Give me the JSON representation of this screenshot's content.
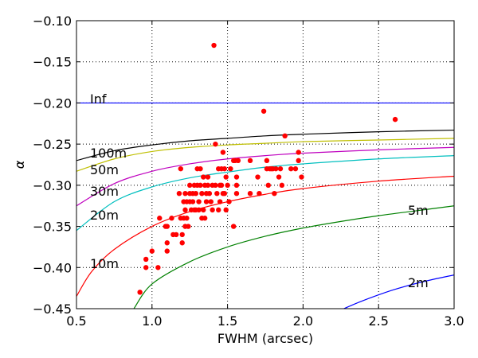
{
  "chart_data": {
    "type": "scatter",
    "title": "",
    "xlabel": "FWHM (arcsec)",
    "ylabel": "α",
    "xlim": [
      0.5,
      3.0
    ],
    "ylim": [
      -0.45,
      -0.1
    ],
    "xticks": [
      "0.5",
      "1.0",
      "1.5",
      "2.0",
      "2.5",
      "3.0"
    ],
    "yticks": [
      "−0.10",
      "−0.15",
      "−0.20",
      "−0.25",
      "−0.30",
      "−0.35",
      "−0.40",
      "−0.45"
    ],
    "grid": true,
    "scatter_color": "#ff0000",
    "points": [
      [
        0.92,
        -0.43
      ],
      [
        0.96,
        -0.39
      ],
      [
        0.96,
        -0.4
      ],
      [
        1.0,
        -0.38
      ],
      [
        1.04,
        -0.4
      ],
      [
        1.05,
        -0.34
      ],
      [
        1.09,
        -0.35
      ],
      [
        1.1,
        -0.35
      ],
      [
        1.1,
        -0.37
      ],
      [
        1.1,
        -0.38
      ],
      [
        1.13,
        -0.34
      ],
      [
        1.14,
        -0.36
      ],
      [
        1.16,
        -0.36
      ],
      [
        1.18,
        -0.31
      ],
      [
        1.19,
        -0.28
      ],
      [
        1.19,
        -0.34
      ],
      [
        1.2,
        -0.36
      ],
      [
        1.2,
        -0.37
      ],
      [
        1.21,
        -0.32
      ],
      [
        1.21,
        -0.34
      ],
      [
        1.22,
        -0.31
      ],
      [
        1.22,
        -0.33
      ],
      [
        1.22,
        -0.35
      ],
      [
        1.23,
        -0.32
      ],
      [
        1.23,
        -0.34
      ],
      [
        1.24,
        -0.35
      ],
      [
        1.25,
        -0.3
      ],
      [
        1.25,
        -0.31
      ],
      [
        1.25,
        -0.32
      ],
      [
        1.26,
        -0.33
      ],
      [
        1.27,
        -0.31
      ],
      [
        1.27,
        -0.32
      ],
      [
        1.28,
        -0.3
      ],
      [
        1.28,
        -0.33
      ],
      [
        1.29,
        -0.31
      ],
      [
        1.29,
        -0.33
      ],
      [
        1.3,
        -0.28
      ],
      [
        1.3,
        -0.3
      ],
      [
        1.31,
        -0.32
      ],
      [
        1.31,
        -0.33
      ],
      [
        1.32,
        -0.28
      ],
      [
        1.32,
        -0.3
      ],
      [
        1.33,
        -0.31
      ],
      [
        1.33,
        -0.34
      ],
      [
        1.34,
        -0.29
      ],
      [
        1.34,
        -0.33
      ],
      [
        1.35,
        -0.3
      ],
      [
        1.35,
        -0.34
      ],
      [
        1.36,
        -0.31
      ],
      [
        1.36,
        -0.32
      ],
      [
        1.37,
        -0.29
      ],
      [
        1.37,
        -0.3
      ],
      [
        1.38,
        -0.31
      ],
      [
        1.39,
        -0.32
      ],
      [
        1.4,
        -0.3
      ],
      [
        1.4,
        -0.33
      ],
      [
        1.41,
        -0.13
      ],
      [
        1.42,
        -0.25
      ],
      [
        1.42,
        -0.3
      ],
      [
        1.43,
        -0.31
      ],
      [
        1.44,
        -0.28
      ],
      [
        1.44,
        -0.33
      ],
      [
        1.45,
        -0.3
      ],
      [
        1.45,
        -0.32
      ],
      [
        1.46,
        -0.28
      ],
      [
        1.46,
        -0.3
      ],
      [
        1.47,
        -0.26
      ],
      [
        1.47,
        -0.31
      ],
      [
        1.48,
        -0.28
      ],
      [
        1.48,
        -0.31
      ],
      [
        1.49,
        -0.29
      ],
      [
        1.49,
        -0.33
      ],
      [
        1.5,
        -0.3
      ],
      [
        1.51,
        -0.32
      ],
      [
        1.52,
        -0.28
      ],
      [
        1.54,
        -0.27
      ],
      [
        1.54,
        -0.35
      ],
      [
        1.55,
        -0.27
      ],
      [
        1.56,
        -0.29
      ],
      [
        1.56,
        -0.3
      ],
      [
        1.56,
        -0.31
      ],
      [
        1.57,
        -0.27
      ],
      [
        1.65,
        -0.27
      ],
      [
        1.65,
        -0.31
      ],
      [
        1.7,
        -0.29
      ],
      [
        1.71,
        -0.31
      ],
      [
        1.74,
        -0.21
      ],
      [
        1.76,
        -0.27
      ],
      [
        1.76,
        -0.28
      ],
      [
        1.77,
        -0.3
      ],
      [
        1.78,
        -0.28
      ],
      [
        1.79,
        -0.28
      ],
      [
        1.8,
        -0.28
      ],
      [
        1.81,
        -0.31
      ],
      [
        1.82,
        -0.28
      ],
      [
        1.84,
        -0.29
      ],
      [
        1.85,
        -0.28
      ],
      [
        1.86,
        -0.3
      ],
      [
        1.88,
        -0.24
      ],
      [
        1.92,
        -0.28
      ],
      [
        1.95,
        -0.28
      ],
      [
        1.97,
        -0.26
      ],
      [
        1.97,
        -0.27
      ],
      [
        1.99,
        -0.29
      ],
      [
        2.61,
        -0.22
      ]
    ],
    "series": [
      {
        "name": "Inf",
        "color": "#0000ff",
        "values": [
          [
            0.5,
            -0.2
          ],
          [
            3.0,
            -0.2
          ]
        ]
      },
      {
        "name": "100m",
        "color": "#000000",
        "values": [
          [
            0.5,
            -0.27
          ],
          [
            0.75,
            -0.258
          ],
          [
            1.0,
            -0.251
          ],
          [
            1.25,
            -0.246
          ],
          [
            1.5,
            -0.243
          ],
          [
            1.75,
            -0.24
          ],
          [
            2.0,
            -0.238
          ],
          [
            2.5,
            -0.235
          ],
          [
            3.0,
            -0.233
          ]
        ]
      },
      {
        "name": "50m",
        "color": "#bfbf00",
        "values": [
          [
            0.5,
            -0.283
          ],
          [
            0.75,
            -0.268
          ],
          [
            1.0,
            -0.259
          ],
          [
            1.25,
            -0.254
          ],
          [
            1.5,
            -0.251
          ],
          [
            1.75,
            -0.249
          ],
          [
            2.0,
            -0.247
          ],
          [
            2.5,
            -0.245
          ],
          [
            3.0,
            -0.243
          ]
        ]
      },
      {
        "name": "30m",
        "color": "#bf00bf",
        "values": [
          [
            0.5,
            -0.325
          ],
          [
            0.75,
            -0.298
          ],
          [
            1.0,
            -0.283
          ],
          [
            1.25,
            -0.274
          ],
          [
            1.5,
            -0.268
          ],
          [
            1.75,
            -0.264
          ],
          [
            2.0,
            -0.261
          ],
          [
            2.5,
            -0.257
          ],
          [
            3.0,
            -0.254
          ]
        ]
      },
      {
        "name": "20m",
        "color": "#00bfbf",
        "values": [
          [
            0.5,
            -0.355
          ],
          [
            0.75,
            -0.32
          ],
          [
            1.0,
            -0.302
          ],
          [
            1.25,
            -0.291
          ],
          [
            1.5,
            -0.284
          ],
          [
            1.75,
            -0.278
          ],
          [
            2.0,
            -0.274
          ],
          [
            2.5,
            -0.268
          ],
          [
            3.0,
            -0.264
          ]
        ]
      },
      {
        "name": "10m",
        "color": "#ff0000",
        "values": [
          [
            0.5,
            -0.435
          ],
          [
            0.6,
            -0.405
          ],
          [
            0.75,
            -0.378
          ],
          [
            1.0,
            -0.35
          ],
          [
            1.25,
            -0.332
          ],
          [
            1.5,
            -0.32
          ],
          [
            1.75,
            -0.311
          ],
          [
            2.0,
            -0.304
          ],
          [
            2.5,
            -0.295
          ],
          [
            3.0,
            -0.289
          ]
        ]
      },
      {
        "name": "5m",
        "color": "#008000",
        "values": [
          [
            0.88,
            -0.45
          ],
          [
            1.0,
            -0.42
          ],
          [
            1.25,
            -0.393
          ],
          [
            1.5,
            -0.375
          ],
          [
            1.75,
            -0.362
          ],
          [
            2.0,
            -0.352
          ],
          [
            2.25,
            -0.344
          ],
          [
            2.5,
            -0.337
          ],
          [
            2.75,
            -0.331
          ],
          [
            3.0,
            -0.325
          ]
        ]
      },
      {
        "name": "2m",
        "color": "#0000ff",
        "values": [
          [
            2.27,
            -0.45
          ],
          [
            2.4,
            -0.44
          ],
          [
            2.6,
            -0.427
          ],
          [
            2.8,
            -0.417
          ],
          [
            3.0,
            -0.409
          ]
        ]
      }
    ],
    "curve_labels": [
      {
        "text": "Inf"
      },
      {
        "text": "100m"
      },
      {
        "text": "50m"
      },
      {
        "text": "30m"
      },
      {
        "text": "20m"
      },
      {
        "text": "10m"
      },
      {
        "text": "5m"
      },
      {
        "text": "2m"
      }
    ]
  }
}
